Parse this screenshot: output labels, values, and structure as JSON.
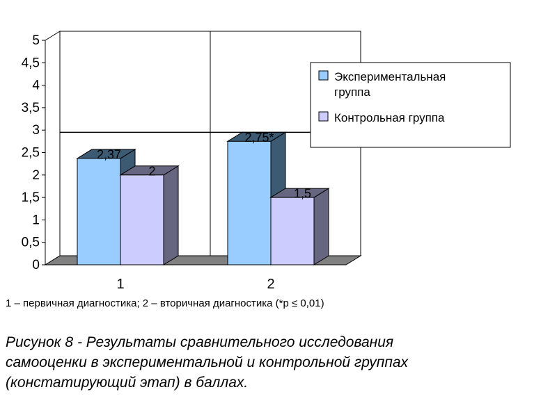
{
  "chart_data": {
    "type": "bar",
    "categories": [
      "1",
      "2"
    ],
    "series": [
      {
        "name": "Экспериментальная группа",
        "values": [
          2.37,
          2.75
        ],
        "labels": [
          "2,37",
          "2,75*"
        ],
        "color": "#99CCFF"
      },
      {
        "name": "Контрольная группа",
        "values": [
          2,
          1.5
        ],
        "labels": [
          "2",
          "1,5"
        ],
        "color": "#CCCCFF"
      }
    ],
    "ylim": [
      0,
      5
    ],
    "yticks": [
      {
        "value": 0,
        "label": "0"
      },
      {
        "value": 0.5,
        "label": "0,5"
      },
      {
        "value": 1,
        "label": "1"
      },
      {
        "value": 1.5,
        "label": "1,5"
      },
      {
        "value": 2,
        "label": "2"
      },
      {
        "value": 2.5,
        "label": "2,5"
      },
      {
        "value": 3,
        "label": "3"
      },
      {
        "value": 3.5,
        "label": "3,5"
      },
      {
        "value": 4,
        "label": "4"
      },
      {
        "value": 4.5,
        "label": "4,5"
      },
      {
        "value": 5,
        "label": "5"
      }
    ],
    "legend": {
      "position": "top-right",
      "items": [
        {
          "line1": "Экспериментальная",
          "line2": "группа"
        },
        {
          "line1": "Контрольная группа",
          "line2": ""
        }
      ]
    },
    "grid": "vertical",
    "reference_line": 2.75
  },
  "footnote": "1 – первичная диагностика; 2 – вторичная диагностика (*р ≤ 0,01)",
  "caption": {
    "line1": "Рисунок 8 - Результаты сравнительного исследования",
    "line2": "самооценки в экспериментальной и контрольной группах",
    "line3": "(констатирующий этап) в баллах."
  },
  "colors": {
    "exp_front": "#99CCFF",
    "exp_side": "#3D5A73",
    "ctrl_front": "#CCCCFF",
    "ctrl_side": "#666680",
    "floor": "#808080"
  }
}
